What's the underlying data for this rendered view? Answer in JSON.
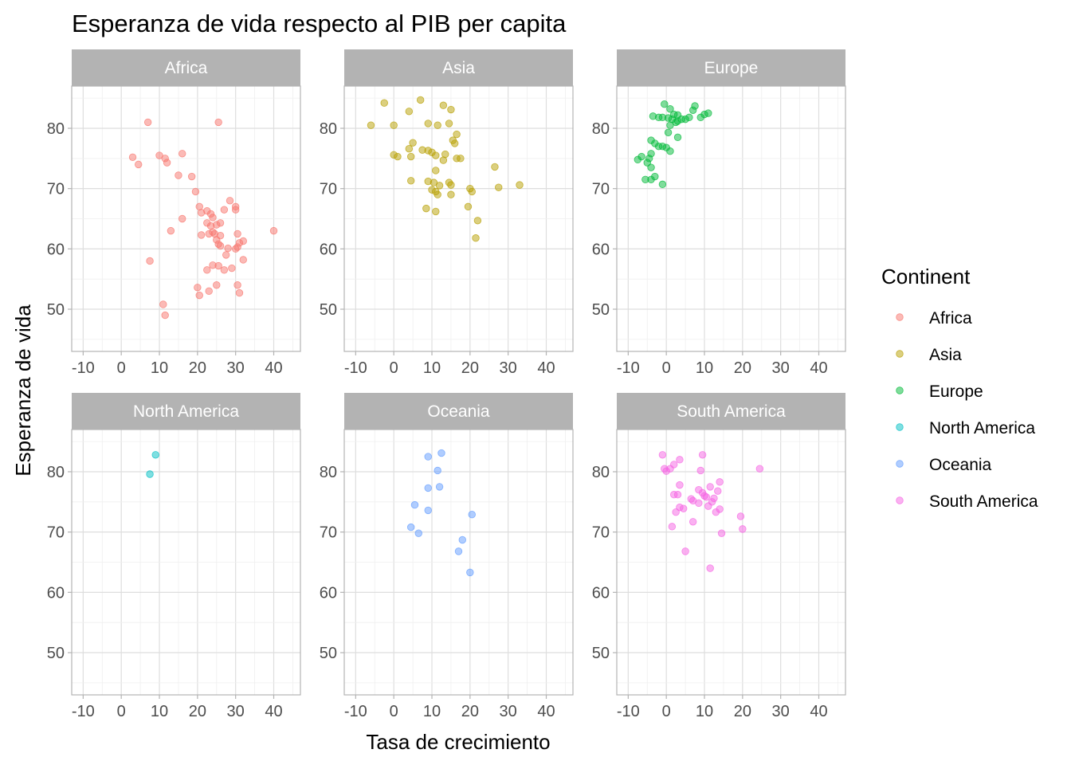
{
  "chart_data": {
    "type": "scatter",
    "title": "Esperanza de vida respecto al PIB per capita",
    "xlabel": "Tasa de crecimiento",
    "ylabel": "Esperanza de vida",
    "xlim": [
      -13,
      47
    ],
    "ylim": [
      43,
      87
    ],
    "x_ticks": [
      -10,
      0,
      10,
      20,
      30,
      40
    ],
    "y_ticks": [
      50,
      60,
      70,
      80
    ],
    "grid": true,
    "legend": {
      "title": "Continent",
      "position": "right"
    },
    "panels": [
      {
        "name": "Africa",
        "color": "#F8766D",
        "points": [
          [
            7,
            81
          ],
          [
            25.5,
            81
          ],
          [
            3,
            75.2
          ],
          [
            4.5,
            74
          ],
          [
            10,
            75.5
          ],
          [
            11.5,
            75
          ],
          [
            12,
            74.3
          ],
          [
            15,
            72.2
          ],
          [
            16,
            75.8
          ],
          [
            18.5,
            72
          ],
          [
            19.5,
            69.5
          ],
          [
            20.5,
            67
          ],
          [
            21,
            66
          ],
          [
            16,
            65
          ],
          [
            22.5,
            66.3
          ],
          [
            23.5,
            65.8
          ],
          [
            24,
            65.2
          ],
          [
            22.5,
            64.3
          ],
          [
            23.5,
            63.8
          ],
          [
            25,
            64
          ],
          [
            26,
            64.3
          ],
          [
            27,
            66.5
          ],
          [
            28.5,
            68
          ],
          [
            30,
            67
          ],
          [
            30,
            66.5
          ],
          [
            26,
            62.2
          ],
          [
            24,
            62.8
          ],
          [
            23,
            62.5
          ],
          [
            21,
            62.3
          ],
          [
            13,
            63
          ],
          [
            24.5,
            62.5
          ],
          [
            25,
            61.5
          ],
          [
            25.5,
            60.8
          ],
          [
            26,
            60.5
          ],
          [
            28,
            60.1
          ],
          [
            30,
            60
          ],
          [
            30.5,
            60.3
          ],
          [
            31,
            61
          ],
          [
            32,
            61.3
          ],
          [
            30.5,
            62.5
          ],
          [
            40,
            63
          ],
          [
            27.5,
            59
          ],
          [
            7.5,
            58
          ],
          [
            32,
            58.2
          ],
          [
            24,
            57.3
          ],
          [
            25.5,
            57.2
          ],
          [
            27,
            56.5
          ],
          [
            29,
            56.8
          ],
          [
            22.5,
            56.5
          ],
          [
            20,
            53.6
          ],
          [
            20.5,
            52.3
          ],
          [
            23,
            53
          ],
          [
            25,
            54
          ],
          [
            30.5,
            54
          ],
          [
            31,
            52.7
          ],
          [
            11,
            50.8
          ],
          [
            11.5,
            49
          ]
        ]
      },
      {
        "name": "Asia",
        "color": "#B79F00",
        "points": [
          [
            -2.5,
            84.2
          ],
          [
            7,
            84.7
          ],
          [
            -6,
            80.5
          ],
          [
            0,
            80.5
          ],
          [
            4,
            82.8
          ],
          [
            9,
            80.8
          ],
          [
            13,
            83.8
          ],
          [
            15,
            83.1
          ],
          [
            11.5,
            80.5
          ],
          [
            14.5,
            80.8
          ],
          [
            15.5,
            78
          ],
          [
            16,
            77.5
          ],
          [
            16.5,
            79
          ],
          [
            5,
            77.6
          ],
          [
            4,
            76.6
          ],
          [
            7.5,
            76.4
          ],
          [
            9,
            76.3
          ],
          [
            10,
            76
          ],
          [
            0,
            75.6
          ],
          [
            1,
            75.3
          ],
          [
            4.5,
            75.3
          ],
          [
            11,
            75.5
          ],
          [
            13.5,
            75.7
          ],
          [
            13,
            74.7
          ],
          [
            16.5,
            75
          ],
          [
            17.5,
            75
          ],
          [
            11,
            73
          ],
          [
            4.5,
            71.3
          ],
          [
            9,
            71.2
          ],
          [
            10.5,
            71
          ],
          [
            12,
            70.5
          ],
          [
            14.5,
            71
          ],
          [
            15,
            70.6
          ],
          [
            10,
            69.8
          ],
          [
            11,
            69.5
          ],
          [
            11.5,
            69
          ],
          [
            15,
            69
          ],
          [
            20,
            70
          ],
          [
            20.5,
            69.5
          ],
          [
            26.5,
            73.6
          ],
          [
            27.5,
            70.2
          ],
          [
            33,
            70.6
          ],
          [
            19.5,
            67
          ],
          [
            8.5,
            66.7
          ],
          [
            11,
            66.2
          ],
          [
            22,
            64.7
          ],
          [
            21.5,
            61.8
          ]
        ]
      },
      {
        "name": "Europe",
        "color": "#00BA38",
        "points": [
          [
            -0.5,
            84
          ],
          [
            1,
            83.2
          ],
          [
            7,
            83
          ],
          [
            7.5,
            83.7
          ],
          [
            -3.5,
            82
          ],
          [
            -2,
            81.8
          ],
          [
            -1,
            81.8
          ],
          [
            0.5,
            81.7
          ],
          [
            1.5,
            81.5
          ],
          [
            2,
            82.3
          ],
          [
            3,
            82.2
          ],
          [
            4,
            81.5
          ],
          [
            3,
            81.2
          ],
          [
            5,
            81.5
          ],
          [
            6,
            81.8
          ],
          [
            9,
            81.8
          ],
          [
            10,
            82.3
          ],
          [
            11,
            82.5
          ],
          [
            2.5,
            81
          ],
          [
            1,
            80.5
          ],
          [
            0.5,
            79.3
          ],
          [
            3,
            78.5
          ],
          [
            -4,
            78
          ],
          [
            -3,
            77.5
          ],
          [
            -2,
            77
          ],
          [
            -1,
            77
          ],
          [
            0,
            76.8
          ],
          [
            1,
            76.2
          ],
          [
            -4,
            75.8
          ],
          [
            -6.5,
            75.3
          ],
          [
            -7.5,
            74.8
          ],
          [
            -4.5,
            75
          ],
          [
            -5,
            74.3
          ],
          [
            -4,
            73.5
          ],
          [
            -3,
            72
          ],
          [
            -4,
            71.5
          ],
          [
            -5.5,
            71.5
          ],
          [
            -1,
            70.7
          ]
        ]
      },
      {
        "name": "North America",
        "color": "#00BFC4",
        "points": [
          [
            9,
            82.8
          ],
          [
            7.5,
            79.6
          ]
        ]
      },
      {
        "name": "Oceania",
        "color": "#619CFF",
        "points": [
          [
            12.5,
            83.1
          ],
          [
            9,
            82.5
          ],
          [
            11.5,
            80.2
          ],
          [
            9,
            77.3
          ],
          [
            12,
            77.5
          ],
          [
            5.5,
            74.5
          ],
          [
            9,
            73.6
          ],
          [
            20.5,
            72.9
          ],
          [
            4.5,
            70.8
          ],
          [
            6.5,
            69.8
          ],
          [
            18,
            68.7
          ],
          [
            17,
            66.8
          ],
          [
            20,
            63.3
          ]
        ]
      },
      {
        "name": "South America",
        "color": "#F564E3",
        "points": [
          [
            -1,
            82.8
          ],
          [
            3.5,
            82
          ],
          [
            9.5,
            82.8
          ],
          [
            -0.5,
            80.5
          ],
          [
            0,
            80.1
          ],
          [
            1,
            80.5
          ],
          [
            9,
            80.2
          ],
          [
            2,
            81.2
          ],
          [
            24.5,
            80.5
          ],
          [
            14,
            78.3
          ],
          [
            3.5,
            77.8
          ],
          [
            11.5,
            77.5
          ],
          [
            2,
            76.2
          ],
          [
            3,
            76.2
          ],
          [
            8.5,
            77
          ],
          [
            9.5,
            76.5
          ],
          [
            10,
            76
          ],
          [
            10.5,
            75.8
          ],
          [
            6.5,
            75.5
          ],
          [
            7,
            75.2
          ],
          [
            8.5,
            74.8
          ],
          [
            12,
            75
          ],
          [
            13.5,
            76.8
          ],
          [
            12.5,
            75.6
          ],
          [
            11,
            74.3
          ],
          [
            3.5,
            74.1
          ],
          [
            4.5,
            73.9
          ],
          [
            2.5,
            73.3
          ],
          [
            13,
            73.3
          ],
          [
            14,
            73.8
          ],
          [
            19.5,
            72.6
          ],
          [
            7,
            71.7
          ],
          [
            1.5,
            70.9
          ],
          [
            20,
            70.5
          ],
          [
            14.5,
            69.8
          ],
          [
            5,
            66.8
          ],
          [
            11.5,
            64
          ]
        ]
      }
    ]
  }
}
